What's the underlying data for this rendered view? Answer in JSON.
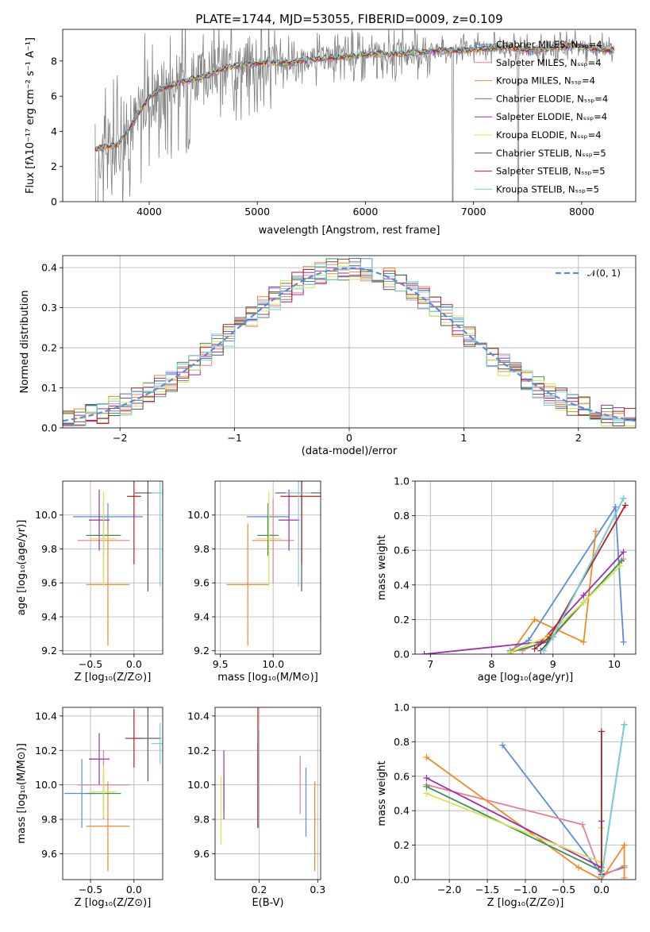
{
  "title": "PLATE=1744, MJD=53055, FIBERID=0009, z=0.109",
  "colors": {
    "data": "#808080",
    "Chabrier MILES": "#5b8bd6",
    "Salpeter MILES": "#e97f8f",
    "Kroupa MILES": "#f08a24",
    "Chabrier ELODIE": "#3f8f5a",
    "Salpeter ELODIE": "#9b2fae",
    "Kroupa ELODIE": "#d4e84c",
    "Chabrier STELIB": "#555555",
    "Salpeter STELIB": "#b22222",
    "Kroupa STELIB": "#6fd3e0"
  },
  "chart_data": [
    {
      "type": "line",
      "title": "PLATE=1744, MJD=53055, FIBERID=0009, z=0.109",
      "xlabel": "wavelength [Angstrom, rest frame]",
      "ylabel": "Flux [fλ10⁻¹⁷ erg cm⁻² s⁻¹ A⁻¹]",
      "xlim": [
        3200,
        8500
      ],
      "ylim": [
        0,
        9.8
      ],
      "xticks": [
        "4000",
        "5000",
        "6000",
        "7000",
        "8000"
      ],
      "yticks": [
        "0",
        "2",
        "4",
        "6",
        "8"
      ],
      "legend_position": "upper-right",
      "legend": [
        "Chabrier MILES, Nₛₛₚ=4",
        "Salpeter MILES, Nₛₛₚ=4",
        "Kroupa MILES, Nₛₛₚ=4",
        "Chabrier ELODIE, Nₛₛₚ=4",
        "Salpeter ELODIE, Nₛₛₚ=4",
        "Kroupa ELODIE, Nₛₛₚ=4",
        "Chabrier STELIB, Nₛₛₚ=5",
        "Salpeter STELIB, Nₛₛₚ=5",
        "Kroupa STELIB, Nₛₛₚ=5"
      ],
      "model_continuum": {
        "x": [
          3500,
          3700,
          3800,
          3900,
          4000,
          4100,
          4300,
          4500,
          4700,
          4900,
          5100,
          5300,
          5500,
          5700,
          5900,
          6100,
          6300,
          6500,
          6700,
          6900,
          7100,
          7300,
          7500,
          7700,
          7900,
          8100,
          8300
        ],
        "y": [
          3.0,
          3.2,
          4.0,
          5.0,
          5.9,
          6.4,
          6.8,
          7.1,
          7.6,
          7.8,
          7.9,
          7.9,
          8.1,
          8.2,
          8.3,
          8.4,
          8.4,
          8.5,
          8.6,
          8.6,
          8.7,
          8.8,
          8.6,
          8.7,
          8.9,
          8.7,
          8.6
        ]
      }
    },
    {
      "type": "histogram",
      "xlabel": "(data-model)/error",
      "ylabel": "Normed distribution",
      "xlim": [
        -2.5,
        2.5
      ],
      "ylim": [
        0,
        0.43
      ],
      "xticks": [
        "−2",
        "−1",
        "0",
        "1",
        "2"
      ],
      "yticks": [
        "0.0",
        "0.1",
        "0.2",
        "0.3",
        "0.4"
      ],
      "grid": true,
      "legend_position": "upper-right",
      "reference_label": "𝒩(0, 1)",
      "reference_curve": {
        "mean": 0,
        "sigma": 1
      }
    },
    {
      "type": "errorbar",
      "xlabel": "Z [log₁₀(Z/Z⊙)]",
      "ylabel": "age  [log₁₀(age/yr)]",
      "xlim": [
        -0.82,
        0.33
      ],
      "ylim": [
        9.18,
        10.2
      ],
      "xticks": [
        "−0.5",
        "0.0"
      ],
      "yticks": [
        "9.2",
        "9.4",
        "9.6",
        "9.8",
        "10.0"
      ],
      "grid": true,
      "points": [
        {
          "model": "Chabrier MILES",
          "x": -0.3,
          "xerr": 0.4,
          "y": 9.99,
          "yerr": 0.08
        },
        {
          "model": "Salpeter MILES",
          "x": -0.35,
          "xerr": 0.3,
          "y": 9.85,
          "yerr": 0.25
        },
        {
          "model": "Kroupa MILES",
          "x": -0.3,
          "xerr": 0.25,
          "y": 9.59,
          "yerr": 0.36
        },
        {
          "model": "Chabrier ELODIE",
          "x": -0.35,
          "xerr": 0.2,
          "y": 9.88,
          "yerr": 0.12
        },
        {
          "model": "Salpeter ELODIE",
          "x": -0.4,
          "xerr": 0.12,
          "y": 9.97,
          "yerr": 0.18
        },
        {
          "model": "Kroupa ELODIE",
          "x": -0.35,
          "xerr": 0.15,
          "y": 9.86,
          "yerr": 0.28
        },
        {
          "model": "Chabrier STELIB",
          "x": 0.16,
          "xerr": 0.15,
          "y": 10.13,
          "yerr": 0.58
        },
        {
          "model": "Salpeter STELIB",
          "x": 0.0,
          "xerr": 0.08,
          "y": 10.11,
          "yerr": 0.4
        },
        {
          "model": "Kroupa STELIB",
          "x": 0.3,
          "xerr": 0.1,
          "y": 10.13,
          "yerr": 0.55
        }
      ]
    },
    {
      "type": "errorbar",
      "xlabel": "mass [log₁₀(M/M⊙)]",
      "xlim": [
        9.45,
        10.45
      ],
      "ylim": [
        9.18,
        10.2
      ],
      "xticks": [
        "9.5",
        "10.0"
      ],
      "yticks": [
        "9.2",
        "9.4",
        "9.6",
        "9.8",
        "10.0"
      ],
      "grid": true,
      "points": [
        {
          "model": "Chabrier MILES",
          "x": 9.95,
          "xerr": 0.2,
          "y": 9.99,
          "yerr": 0.08
        },
        {
          "model": "Salpeter MILES",
          "x": 10.0,
          "xerr": 0.2,
          "y": 9.85,
          "yerr": 0.25
        },
        {
          "model": "Kroupa MILES",
          "x": 9.76,
          "xerr": 0.2,
          "y": 9.59,
          "yerr": 0.36
        },
        {
          "model": "Chabrier ELODIE",
          "x": 9.95,
          "xerr": 0.1,
          "y": 9.88,
          "yerr": 0.12
        },
        {
          "model": "Salpeter ELODIE",
          "x": 10.15,
          "xerr": 0.1,
          "y": 9.97,
          "yerr": 0.18
        },
        {
          "model": "Kroupa ELODIE",
          "x": 9.96,
          "xerr": 0.12,
          "y": 9.86,
          "yerr": 0.28
        },
        {
          "model": "Chabrier STELIB",
          "x": 10.27,
          "xerr": 0.25,
          "y": 10.13,
          "yerr": 0.58
        },
        {
          "model": "Salpeter STELIB",
          "x": 10.27,
          "xerr": 0.2,
          "y": 10.11,
          "yerr": 0.4
        },
        {
          "model": "Kroupa STELIB",
          "x": 10.24,
          "xerr": 0.12,
          "y": 10.13,
          "yerr": 0.55
        }
      ]
    },
    {
      "type": "line",
      "xlabel": "age  [log₁₀(age/yr)]",
      "ylabel": "mass weight",
      "xlim": [
        6.75,
        10.35
      ],
      "ylim": [
        0,
        1.0
      ],
      "xticks": [
        "7",
        "8",
        "9",
        "10"
      ],
      "yticks": [
        "0.0",
        "0.2",
        "0.4",
        "0.6",
        "0.8",
        "1.0"
      ],
      "grid": true,
      "series": [
        {
          "model": "Chabrier MILES",
          "x": [
            8.3,
            8.6,
            10.02,
            10.15
          ],
          "y": [
            0.02,
            0.08,
            0.85,
            0.07
          ]
        },
        {
          "model": "Salpeter MILES",
          "x": [
            8.5,
            9.0,
            9.5,
            10.15
          ],
          "y": [
            0.02,
            0.1,
            0.3,
            0.55
          ]
        },
        {
          "model": "Kroupa MILES",
          "x": [
            8.3,
            8.7,
            9.5,
            9.7
          ],
          "y": [
            0.0,
            0.2,
            0.07,
            0.71
          ]
        },
        {
          "model": "Chabrier ELODIE",
          "x": [
            8.3,
            8.9,
            9.5,
            10.12
          ],
          "y": [
            0.01,
            0.07,
            0.3,
            0.54
          ]
        },
        {
          "model": "Salpeter ELODIE",
          "x": [
            6.9,
            8.8,
            9.5,
            10.15
          ],
          "y": [
            0.0,
            0.07,
            0.34,
            0.59
          ]
        },
        {
          "model": "Kroupa ELODIE",
          "x": [
            8.3,
            8.9,
            9.5,
            10.1
          ],
          "y": [
            0.01,
            0.1,
            0.3,
            0.51
          ]
        },
        {
          "model": "Chabrier STELIB",
          "x": [
            8.8,
            9.0,
            10.15
          ],
          "y": [
            0.02,
            0.1,
            0.9
          ]
        },
        {
          "model": "Salpeter STELIB",
          "x": [
            8.7,
            8.95,
            10.18
          ],
          "y": [
            0.03,
            0.1,
            0.86
          ]
        },
        {
          "model": "Kroupa STELIB",
          "x": [
            8.85,
            9.0,
            10.15
          ],
          "y": [
            0.02,
            0.1,
            0.9
          ]
        }
      ]
    },
    {
      "type": "errorbar",
      "xlabel": "Z [log₁₀(Z/Z⊙)]",
      "ylabel": "mass [log₁₀(M/M⊙)]",
      "xlim": [
        -0.82,
        0.33
      ],
      "ylim": [
        9.45,
        10.45
      ],
      "xticks": [
        "−0.5",
        "0.0"
      ],
      "yticks": [
        "9.6",
        "9.8",
        "10.0",
        "10.2",
        "10.4"
      ],
      "grid": true,
      "points": [
        {
          "model": "Chabrier MILES",
          "x": -0.6,
          "xerr": 0.2,
          "y": 9.95,
          "yerr": 0.2
        },
        {
          "model": "Salpeter MILES",
          "x": -0.35,
          "xerr": 0.3,
          "y": 10.0,
          "yerr": 0.2
        },
        {
          "model": "Kroupa MILES",
          "x": -0.3,
          "xerr": 0.25,
          "y": 9.76,
          "yerr": 0.26
        },
        {
          "model": "Chabrier ELODIE",
          "x": -0.35,
          "xerr": 0.2,
          "y": 9.95,
          "yerr": 0.1
        },
        {
          "model": "Salpeter ELODIE",
          "x": -0.4,
          "xerr": 0.12,
          "y": 10.15,
          "yerr": 0.15
        },
        {
          "model": "Kroupa ELODIE",
          "x": -0.35,
          "xerr": 0.15,
          "y": 9.96,
          "yerr": 0.15
        },
        {
          "model": "Chabrier STELIB",
          "x": 0.16,
          "xerr": 0.15,
          "y": 10.27,
          "yerr": 0.25
        },
        {
          "model": "Salpeter STELIB",
          "x": 0.0,
          "xerr": 0.1,
          "y": 10.27,
          "yerr": 0.17
        },
        {
          "model": "Kroupa STELIB",
          "x": 0.3,
          "xerr": 0.1,
          "y": 10.24,
          "yerr": 0.12
        }
      ]
    },
    {
      "type": "errorbar",
      "xlabel": "E(B-V)",
      "xlim": [
        0.125,
        0.305
      ],
      "ylim": [
        9.45,
        10.45
      ],
      "xticks": [
        "0.2",
        "0.3"
      ],
      "yticks": [
        "9.6",
        "9.8",
        "10.0",
        "10.2",
        "10.4"
      ],
      "grid": true,
      "points": [
        {
          "model": "Chabrier MILES",
          "x": 0.28,
          "y": 9.9,
          "yerr": 0.2
        },
        {
          "model": "Salpeter MILES",
          "x": 0.27,
          "y": 10.0,
          "yerr": 0.17
        },
        {
          "model": "Kroupa MILES",
          "x": 0.295,
          "y": 9.76,
          "yerr": 0.26
        },
        {
          "model": "Chabrier ELODIE",
          "x": 0.14,
          "y": 9.95,
          "yerr": 0.1
        },
        {
          "model": "Salpeter ELODIE",
          "x": 0.14,
          "y": 10.0,
          "yerr": 0.2
        },
        {
          "model": "Kroupa ELODIE",
          "x": 0.135,
          "y": 9.85,
          "yerr": 0.2
        },
        {
          "model": "Chabrier STELIB",
          "x": 0.198,
          "y": 10.0,
          "yerr": 0.25
        },
        {
          "model": "Salpeter STELIB",
          "x": 0.198,
          "y": 10.1,
          "yerr": 0.35
        },
        {
          "model": "Kroupa STELIB",
          "x": 0.2,
          "y": 10.03,
          "yerr": 0.28
        }
      ]
    },
    {
      "type": "line",
      "xlabel": "Z [log₁₀(Z/Z⊙)]",
      "ylabel": "mass weight",
      "xlim": [
        -2.45,
        0.45
      ],
      "ylim": [
        0,
        1.0
      ],
      "xticks": [
        "−2.0",
        "−1.5",
        "−1.0",
        "−0.5",
        "0.0"
      ],
      "yticks": [
        "0.0",
        "0.2",
        "0.4",
        "0.6",
        "0.8",
        "1.0"
      ],
      "grid": true,
      "series": [
        {
          "model": "Chabrier MILES",
          "x": [
            -1.3,
            0.0,
            0.3
          ],
          "y": [
            0.78,
            0.03,
            0.07
          ]
        },
        {
          "model": "Salpeter MILES",
          "x": [
            -2.3,
            -0.25,
            0.0,
            0.3
          ],
          "y": [
            0.55,
            0.32,
            0.02,
            0.08
          ]
        },
        {
          "model": "Kroupa MILES",
          "x": [
            -2.3,
            -0.3,
            0.0,
            0.3,
            0.3
          ],
          "y": [
            0.71,
            0.07,
            0.0,
            0.2,
            0.01
          ]
        },
        {
          "model": "Chabrier ELODIE",
          "x": [
            -2.3,
            0.0,
            0.0
          ],
          "y": [
            0.54,
            0.05,
            0.3
          ]
        },
        {
          "model": "Salpeter ELODIE",
          "x": [
            -2.3,
            0.0,
            0.0
          ],
          "y": [
            0.59,
            0.07,
            0.34
          ]
        },
        {
          "model": "Kroupa ELODIE",
          "x": [
            -2.3,
            0.0,
            0.0
          ],
          "y": [
            0.5,
            0.1,
            0.3
          ]
        },
        {
          "model": "Chabrier STELIB",
          "x": [
            0.0,
            0.3
          ],
          "y": [
            0.02,
            0.9
          ]
        },
        {
          "model": "Salpeter STELIB",
          "x": [
            0.0,
            0.0
          ],
          "y": [
            0.03,
            0.86
          ]
        },
        {
          "model": "Kroupa STELIB",
          "x": [
            0.0,
            0.3
          ],
          "y": [
            0.02,
            0.9
          ]
        }
      ]
    }
  ]
}
